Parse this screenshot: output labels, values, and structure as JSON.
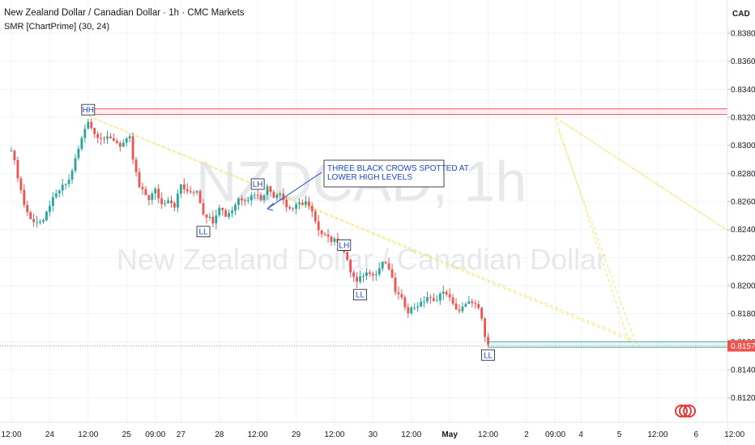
{
  "header": {
    "title": "New Zealand Dollar / Canadian Dollar · 1h · CMC Markets",
    "indicator": "SMR [ChartPrime] (30, 24)"
  },
  "watermark": {
    "symbol": "NZDCAD, 1h",
    "name": "New Zealand Dollar / Canadian Dollar"
  },
  "currency": "CAD",
  "current_price": "0.81570",
  "colors": {
    "up": "#26a69a",
    "down": "#ef5350",
    "resistance": "#f23645",
    "support": "#26a69a",
    "trendline": "#f7e36a",
    "annotation": "#1848cc"
  },
  "logo_icon": "tradingview-logo-icon",
  "chart_data": {
    "type": "candlestick",
    "title": "New Zealand Dollar / Canadian Dollar · 1h · CMC Markets",
    "y_range": [
      0.811,
      0.8395
    ],
    "y_ticks": [
      "0.83800",
      "0.83600",
      "0.83400",
      "0.83200",
      "0.83000",
      "0.82800",
      "0.82600",
      "0.82400",
      "0.82200",
      "0.82000",
      "0.81800",
      "0.81600",
      "0.81400",
      "0.81200"
    ],
    "x_ticks": [
      {
        "label": "12:00",
        "h": 0
      },
      {
        "label": "24",
        "h": 12
      },
      {
        "label": "12:00",
        "h": 24
      },
      {
        "label": "25",
        "h": 36
      },
      {
        "label": "09:00",
        "h": 45
      },
      {
        "label": "27",
        "h": 53
      },
      {
        "label": "28",
        "h": 65
      },
      {
        "label": "12:00",
        "h": 77
      },
      {
        "label": "29",
        "h": 89
      },
      {
        "label": "12:00",
        "h": 101
      },
      {
        "label": "30",
        "h": 113
      },
      {
        "label": "12:00",
        "h": 125
      },
      {
        "label": "May",
        "h": 137
      },
      {
        "label": "12:00",
        "h": 149
      },
      {
        "label": "2",
        "h": 161
      },
      {
        "label": "09:00",
        "h": 170
      },
      {
        "label": "4",
        "h": 178
      },
      {
        "label": "5",
        "h": 190
      },
      {
        "label": "12:00",
        "h": 202
      },
      {
        "label": "6",
        "h": 214
      },
      {
        "label": "12:00",
        "h": 226
      }
    ],
    "key_points": [
      [
        0,
        0.8298
      ],
      [
        4,
        0.8258
      ],
      [
        6,
        0.8247
      ],
      [
        10,
        0.8245
      ],
      [
        12,
        0.8258
      ],
      [
        15,
        0.8268
      ],
      [
        18,
        0.8275
      ],
      [
        20,
        0.829
      ],
      [
        23,
        0.8312
      ],
      [
        24,
        0.8318
      ],
      [
        26,
        0.8308
      ],
      [
        29,
        0.8305
      ],
      [
        32,
        0.8304
      ],
      [
        34,
        0.83
      ],
      [
        37,
        0.8305
      ],
      [
        38,
        0.829
      ],
      [
        40,
        0.827
      ],
      [
        43,
        0.8262
      ],
      [
        45,
        0.8268
      ],
      [
        47,
        0.8258
      ],
      [
        49,
        0.8262
      ],
      [
        51,
        0.8257
      ],
      [
        53,
        0.8272
      ],
      [
        55,
        0.8266
      ],
      [
        58,
        0.8268
      ],
      [
        60,
        0.8252
      ],
      [
        63,
        0.8246
      ],
      [
        65,
        0.8257
      ],
      [
        67,
        0.825
      ],
      [
        69,
        0.8254
      ],
      [
        71,
        0.8262
      ],
      [
        74,
        0.8262
      ],
      [
        76,
        0.8266
      ],
      [
        78,
        0.8262
      ],
      [
        80,
        0.827
      ],
      [
        82,
        0.8264
      ],
      [
        84,
        0.8267
      ],
      [
        86,
        0.8256
      ],
      [
        88,
        0.8255
      ],
      [
        90,
        0.8258
      ],
      [
        92,
        0.826
      ],
      [
        94,
        0.8252
      ],
      [
        96,
        0.8238
      ],
      [
        98,
        0.8238
      ],
      [
        100,
        0.8232
      ],
      [
        102,
        0.8232
      ],
      [
        104,
        0.8224
      ],
      [
        106,
        0.821
      ],
      [
        108,
        0.8202
      ],
      [
        110,
        0.8208
      ],
      [
        112,
        0.821
      ],
      [
        114,
        0.8208
      ],
      [
        116,
        0.8217
      ],
      [
        118,
        0.8212
      ],
      [
        120,
        0.8196
      ],
      [
        122,
        0.819
      ],
      [
        124,
        0.8182
      ],
      [
        126,
        0.8185
      ],
      [
        128,
        0.8187
      ],
      [
        130,
        0.8192
      ],
      [
        132,
        0.8188
      ],
      [
        134,
        0.8194
      ],
      [
        136,
        0.8195
      ],
      [
        138,
        0.8186
      ],
      [
        140,
        0.8182
      ],
      [
        142,
        0.8186
      ],
      [
        144,
        0.8189
      ],
      [
        146,
        0.8183
      ],
      [
        147,
        0.8175
      ],
      [
        148,
        0.8163
      ],
      [
        149,
        0.8158
      ]
    ],
    "pivots": [
      {
        "label": "HH",
        "h": 24,
        "price": 0.83205,
        "pos": "above"
      },
      {
        "label": "LL",
        "h": 60,
        "price": 0.8244,
        "pos": "below"
      },
      {
        "label": "LH",
        "h": 77,
        "price": 0.82675,
        "pos": "above"
      },
      {
        "label": "LH",
        "h": 104,
        "price": 0.8224,
        "pos": "above"
      },
      {
        "label": "LL",
        "h": 109,
        "price": 0.8199,
        "pos": "below"
      },
      {
        "label": "LL",
        "h": 149,
        "price": 0.8156,
        "pos": "below"
      }
    ],
    "resistance_zone": [
      0.8322,
      0.8326
    ],
    "support_zone": [
      0.8156,
      0.816
    ],
    "annotation": {
      "lines": [
        "THREE BLACK CROWS SPOTTED AT",
        "LOWER HIGH LEVELS"
      ]
    }
  }
}
